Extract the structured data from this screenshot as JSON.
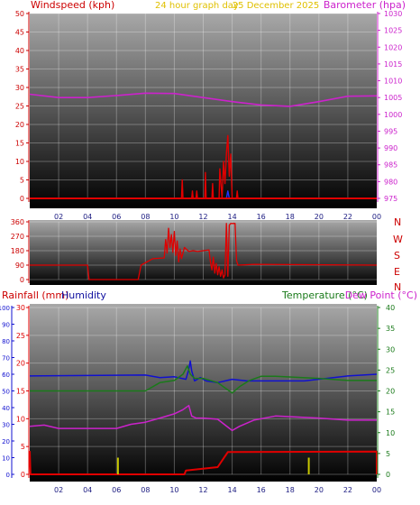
{
  "header": {
    "left_title": "Windspeed (kph)",
    "center_title": "24 hour graph day",
    "date": "25 December 2025",
    "right_title": "Barometer (hpa)"
  },
  "bottom_header": {
    "rainfall": "Rainfall (mm)",
    "humidity": "Humidity",
    "temperature": "Temperature (°C)",
    "dewpoint": "Dew Point (°C)"
  },
  "compass": [
    "N",
    "W",
    "S",
    "E",
    "N"
  ],
  "colors": {
    "wind": "#e00000",
    "barometer": "#cc22cc",
    "direction": "#e00000",
    "rainfall": "#e00000",
    "humidity": "#1010d0",
    "temperature": "#1a7a1a",
    "dewpoint": "#cc22cc",
    "title_red": "#cc0000",
    "title_yellow": "#e0c000",
    "title_magenta": "#cc22cc",
    "title_green": "#1a7a1a",
    "title_blue": "#1010a0"
  },
  "chart_data": [
    {
      "id": "wind",
      "type": "line",
      "x_ticks": [
        "02",
        "04",
        "06",
        "08",
        "10",
        "12",
        "14",
        "16",
        "18",
        "20",
        "22",
        "00"
      ],
      "left_axis": {
        "ticks": [
          0,
          5,
          10,
          15,
          20,
          25,
          30,
          35,
          40,
          45,
          50
        ],
        "ylim": [
          0,
          50
        ]
      },
      "right_axis": {
        "ticks": [
          975,
          980,
          985,
          990,
          995,
          1000,
          1005,
          1010,
          1015,
          1020,
          1025,
          1030
        ],
        "ylim": [
          975,
          1030
        ]
      },
      "series": [
        {
          "key": "barometer",
          "axis": "right",
          "points": [
            [
              0,
              1006
            ],
            [
              2,
              1005
            ],
            [
              4,
              1005
            ],
            [
              6,
              1005.6
            ],
            [
              8,
              1006.3
            ],
            [
              10,
              1006.2
            ],
            [
              12,
              1005
            ],
            [
              14,
              1003.8
            ],
            [
              16,
              1002.8
            ],
            [
              18,
              1002.4
            ],
            [
              20,
              1003.8
            ],
            [
              22,
              1005.4
            ],
            [
              24,
              1005.5
            ]
          ]
        },
        {
          "key": "wind",
          "axis": "left",
          "points": [
            [
              0,
              0
            ],
            [
              10.5,
              0
            ],
            [
              10.55,
              5
            ],
            [
              10.6,
              0
            ],
            [
              11.2,
              0
            ],
            [
              11.25,
              2
            ],
            [
              11.3,
              0
            ],
            [
              11.5,
              0
            ],
            [
              11.55,
              2
            ],
            [
              11.6,
              0
            ],
            [
              12.1,
              0
            ],
            [
              12.15,
              7
            ],
            [
              12.2,
              0
            ],
            [
              12.6,
              0
            ],
            [
              12.65,
              4
            ],
            [
              12.7,
              0
            ],
            [
              13.1,
              0
            ],
            [
              13.15,
              8
            ],
            [
              13.3,
              0
            ],
            [
              13.4,
              10
            ],
            [
              13.5,
              4
            ],
            [
              13.6,
              12
            ],
            [
              13.7,
              17
            ],
            [
              13.8,
              6
            ],
            [
              13.9,
              12
            ],
            [
              14.0,
              0
            ],
            [
              14.3,
              0
            ],
            [
              14.35,
              2
            ],
            [
              14.4,
              0
            ],
            [
              24,
              0
            ]
          ]
        },
        {
          "key": "gust_marker",
          "axis": "left",
          "points": [
            [
              13.6,
              0
            ],
            [
              13.7,
              2
            ],
            [
              13.8,
              0
            ]
          ]
        }
      ]
    },
    {
      "id": "direction",
      "type": "line",
      "left_axis": {
        "ticks": [
          0,
          90,
          180,
          270,
          360
        ],
        "ylim": [
          0,
          360
        ]
      },
      "series": [
        {
          "key": "direction",
          "points": [
            [
              0,
              90
            ],
            [
              4,
              90
            ],
            [
              4.1,
              0
            ],
            [
              7.5,
              0
            ],
            [
              7.7,
              90
            ],
            [
              8.5,
              130
            ],
            [
              9.3,
              135
            ],
            [
              9.4,
              250
            ],
            [
              9.5,
              165
            ],
            [
              9.6,
              320
            ],
            [
              9.7,
              200
            ],
            [
              9.8,
              280
            ],
            [
              9.9,
              170
            ],
            [
              10.0,
              300
            ],
            [
              10.1,
              150
            ],
            [
              10.2,
              240
            ],
            [
              10.3,
              110
            ],
            [
              10.4,
              190
            ],
            [
              10.5,
              130
            ],
            [
              10.7,
              200
            ],
            [
              11.0,
              175
            ],
            [
              11.3,
              180
            ],
            [
              11.6,
              175
            ],
            [
              12.0,
              180
            ],
            [
              12.4,
              185
            ],
            [
              12.5,
              110
            ],
            [
              12.6,
              60
            ],
            [
              12.7,
              140
            ],
            [
              12.8,
              40
            ],
            [
              12.9,
              100
            ],
            [
              13.0,
              30
            ],
            [
              13.1,
              80
            ],
            [
              13.2,
              20
            ],
            [
              13.3,
              60
            ],
            [
              13.4,
              10
            ],
            [
              13.5,
              30
            ],
            [
              13.6,
              350
            ],
            [
              13.7,
              20
            ],
            [
              13.8,
              340
            ],
            [
              13.9,
              350
            ],
            [
              14.2,
              350
            ],
            [
              14.3,
              120
            ],
            [
              14.4,
              90
            ],
            [
              15.5,
              95
            ],
            [
              24,
              90
            ]
          ]
        }
      ]
    },
    {
      "id": "weather",
      "type": "line",
      "x_ticks": [
        "02",
        "04",
        "06",
        "08",
        "10",
        "12",
        "14",
        "16",
        "18",
        "20",
        "22",
        "00"
      ],
      "outer_left_axis": {
        "label": "humidity",
        "ticks": [
          0,
          10,
          20,
          30,
          40,
          50,
          60,
          70,
          80,
          90,
          100
        ],
        "ylim": [
          0,
          100
        ]
      },
      "inner_left_axis": {
        "label": "rainfall",
        "ticks": [
          0,
          5,
          10,
          15,
          20,
          25,
          30
        ],
        "ylim": [
          0,
          30
        ]
      },
      "right_axis": {
        "label": "temperature",
        "ticks": [
          0,
          5,
          10,
          15,
          20,
          25,
          30,
          35,
          40
        ],
        "ylim": [
          0,
          40
        ]
      },
      "series": [
        {
          "key": "humidity",
          "axis": "outer_left",
          "points": [
            [
              0,
              59
            ],
            [
              8,
              59.5
            ],
            [
              9,
              58
            ],
            [
              10,
              58.5
            ],
            [
              10.8,
              57
            ],
            [
              11,
              63
            ],
            [
              11.1,
              68
            ],
            [
              11.2,
              62
            ],
            [
              11.4,
              56
            ],
            [
              11.8,
              58
            ],
            [
              12.2,
              56
            ],
            [
              13,
              55
            ],
            [
              14,
              57
            ],
            [
              15,
              56
            ],
            [
              17,
              56
            ],
            [
              19,
              56
            ],
            [
              22,
              59
            ],
            [
              24,
              60
            ]
          ]
        },
        {
          "key": "temperature",
          "axis": "right",
          "points": [
            [
              0,
              20
            ],
            [
              8,
              20
            ],
            [
              9,
              22
            ],
            [
              10,
              22.5
            ],
            [
              10.6,
              24
            ],
            [
              10.9,
              26
            ],
            [
              11.1,
              24
            ],
            [
              11.4,
              23
            ],
            [
              12,
              23
            ],
            [
              13,
              22
            ],
            [
              14,
              19.5
            ],
            [
              14.5,
              21
            ],
            [
              15.2,
              22.5
            ],
            [
              16,
              23.5
            ],
            [
              17,
              23.5
            ],
            [
              20,
              23
            ],
            [
              22,
              22.5
            ],
            [
              24,
              22.5
            ]
          ]
        },
        {
          "key": "dewpoint",
          "axis": "right",
          "points": [
            [
              0,
              11.5
            ],
            [
              1,
              11.8
            ],
            [
              2,
              11
            ],
            [
              4,
              11
            ],
            [
              6,
              11
            ],
            [
              7,
              12
            ],
            [
              8,
              12.5
            ],
            [
              9,
              13.5
            ],
            [
              10,
              14.5
            ],
            [
              10.6,
              15.5
            ],
            [
              11,
              16.5
            ],
            [
              11.2,
              14
            ],
            [
              11.5,
              13.5
            ],
            [
              12,
              13.5
            ],
            [
              13,
              13.2
            ],
            [
              14,
              10.5
            ],
            [
              14.5,
              11.5
            ],
            [
              15.5,
              13
            ],
            [
              17,
              14
            ],
            [
              20,
              13.5
            ],
            [
              22,
              13
            ],
            [
              24,
              13
            ]
          ]
        },
        {
          "key": "rainfall",
          "axis": "inner_left",
          "points": [
            [
              0,
              4.2
            ],
            [
              0.05,
              0
            ],
            [
              10.7,
              0
            ],
            [
              10.8,
              0.7
            ],
            [
              13,
              1.3
            ],
            [
              13.7,
              4
            ],
            [
              24,
              4.1
            ],
            [
              24,
              0
            ]
          ]
        },
        {
          "key": "rain_marker",
          "axis": "inner_left",
          "points": [
            [
              6.1,
              0
            ],
            [
              6.1,
              3
            ],
            [
              19.3,
              0
            ],
            [
              19.3,
              3
            ]
          ]
        }
      ]
    }
  ]
}
